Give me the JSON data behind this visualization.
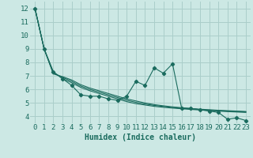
{
  "bg_color": "#cce8e4",
  "grid_color": "#aaceca",
  "line_color": "#1a6b5e",
  "marker_color": "#1a6b5e",
  "xlabel": "Humidex (Indice chaleur)",
  "xlabel_fontsize": 7,
  "tick_fontsize": 6.5,
  "ylim": [
    3.5,
    12.5
  ],
  "xlim": [
    -0.5,
    23.5
  ],
  "yticks": [
    4,
    5,
    6,
    7,
    8,
    9,
    10,
    11,
    12
  ],
  "xticks": [
    0,
    1,
    2,
    3,
    4,
    5,
    6,
    7,
    8,
    9,
    10,
    11,
    12,
    13,
    14,
    15,
    16,
    17,
    18,
    19,
    20,
    21,
    22,
    23
  ],
  "series": [
    {
      "x": [
        0,
        1,
        2,
        3,
        4,
        5,
        6,
        7,
        8,
        9,
        10,
        11,
        12,
        13,
        14,
        15,
        16,
        17,
        18,
        19,
        20,
        21,
        22,
        23
      ],
      "y": [
        12.0,
        9.0,
        7.3,
        6.8,
        6.3,
        5.6,
        5.5,
        5.5,
        5.3,
        5.2,
        5.5,
        6.6,
        6.3,
        7.6,
        7.2,
        7.9,
        4.6,
        4.6,
        4.5,
        4.4,
        4.3,
        3.8,
        3.9,
        3.7
      ],
      "with_markers": true
    },
    {
      "x": [
        0,
        1,
        2,
        3,
        4,
        5,
        6,
        7,
        8,
        9,
        10,
        11,
        12,
        13,
        14,
        15,
        16,
        17,
        18,
        19,
        20,
        21,
        22,
        23
      ],
      "y": [
        12.0,
        9.0,
        7.3,
        6.8,
        6.5,
        6.15,
        5.9,
        5.7,
        5.5,
        5.3,
        5.1,
        4.95,
        4.85,
        4.75,
        4.68,
        4.62,
        4.57,
        4.52,
        4.48,
        4.44,
        4.4,
        4.36,
        4.33,
        4.3
      ],
      "with_markers": false
    },
    {
      "x": [
        0,
        1,
        2,
        3,
        4,
        5,
        6,
        7,
        8,
        9,
        10,
        11,
        12,
        13,
        14,
        15,
        16,
        17,
        18,
        19,
        20,
        21,
        22,
        23
      ],
      "y": [
        12.0,
        9.0,
        7.2,
        6.9,
        6.6,
        6.25,
        6.0,
        5.8,
        5.6,
        5.4,
        5.2,
        5.05,
        4.92,
        4.82,
        4.74,
        4.67,
        4.61,
        4.56,
        4.51,
        4.47,
        4.43,
        4.4,
        4.37,
        4.34
      ],
      "with_markers": false
    },
    {
      "x": [
        0,
        1,
        2,
        3,
        4,
        5,
        6,
        7,
        8,
        9,
        10,
        11,
        12,
        13,
        14,
        15,
        16,
        17,
        18,
        19,
        20,
        21,
        22,
        23
      ],
      "y": [
        12.0,
        9.0,
        7.15,
        6.95,
        6.7,
        6.35,
        6.1,
        5.9,
        5.7,
        5.5,
        5.3,
        5.15,
        5.0,
        4.88,
        4.79,
        4.71,
        4.65,
        4.59,
        4.54,
        4.5,
        4.46,
        4.43,
        4.4,
        4.37
      ],
      "with_markers": false
    }
  ]
}
